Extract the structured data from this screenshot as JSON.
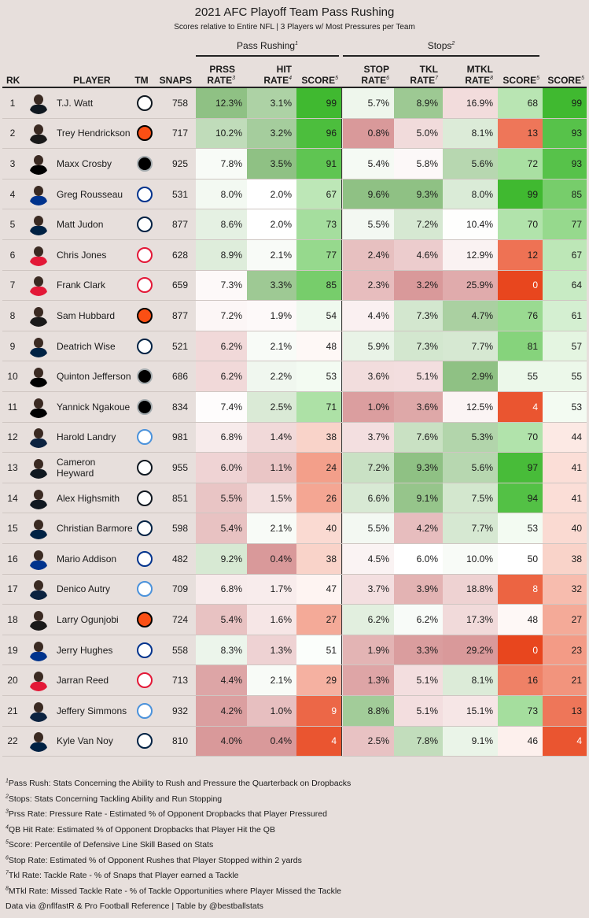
{
  "chart_data": {
    "type": "table",
    "title": "2021 AFC Playoff Team Pass Rushing",
    "subtitle": "Scores relative to Entire NFL | 3 Players w/ Most Pressures per Team",
    "groups": [
      {
        "name": "Pass Rushing",
        "sup": "1"
      },
      {
        "name": "Stops",
        "sup": "2"
      }
    ],
    "headers": {
      "rk": "RK",
      "player": "PLAYER",
      "tm": "TM",
      "snaps": "SNAPS",
      "prss_1": "PRSS",
      "prss_2": "RATE",
      "prss_sup": "3",
      "hit_1": "HIT",
      "hit_2": "RATE",
      "hit_sup": "4",
      "score": "SCORE",
      "score_sup": "5",
      "stop_1": "STOP",
      "stop_2": "RATE",
      "stop_sup": "6",
      "tkl_1": "TKL",
      "tkl_2": "RATE",
      "tkl_sup": "7",
      "mtkl_1": "MTKL",
      "mtkl_2": "RATE",
      "mtkl_sup": "8"
    },
    "rows": [
      {
        "rk": "1",
        "player": "T.J. Watt",
        "team": "PIT",
        "snaps": "758",
        "prss": "12.3%",
        "hit": "3.1%",
        "pr_score": "99",
        "stop": "5.7%",
        "tkl": "8.9%",
        "mtkl": "16.9%",
        "st_score": "68",
        "score": "99"
      },
      {
        "rk": "2",
        "player": "Trey Hendrickson",
        "team": "CIN",
        "snaps": "717",
        "prss": "10.2%",
        "hit": "3.2%",
        "pr_score": "96",
        "stop": "0.8%",
        "tkl": "5.0%",
        "mtkl": "8.1%",
        "st_score": "13",
        "score": "93"
      },
      {
        "rk": "3",
        "player": "Maxx Crosby",
        "team": "LV",
        "snaps": "925",
        "prss": "7.8%",
        "hit": "3.5%",
        "pr_score": "91",
        "stop": "5.4%",
        "tkl": "5.8%",
        "mtkl": "5.6%",
        "st_score": "72",
        "score": "93"
      },
      {
        "rk": "4",
        "player": "Greg Rousseau",
        "team": "BUF",
        "snaps": "531",
        "prss": "8.0%",
        "hit": "2.0%",
        "pr_score": "67",
        "stop": "9.6%",
        "tkl": "9.3%",
        "mtkl": "8.0%",
        "st_score": "99",
        "score": "85"
      },
      {
        "rk": "5",
        "player": "Matt Judon",
        "team": "NE",
        "snaps": "877",
        "prss": "8.6%",
        "hit": "2.0%",
        "pr_score": "73",
        "stop": "5.5%",
        "tkl": "7.2%",
        "mtkl": "10.4%",
        "st_score": "70",
        "score": "77"
      },
      {
        "rk": "6",
        "player": "Chris Jones",
        "team": "KC",
        "snaps": "628",
        "prss": "8.9%",
        "hit": "2.1%",
        "pr_score": "77",
        "stop": "2.4%",
        "tkl": "4.6%",
        "mtkl": "12.9%",
        "st_score": "12",
        "score": "67"
      },
      {
        "rk": "7",
        "player": "Frank Clark",
        "team": "KC",
        "snaps": "659",
        "prss": "7.3%",
        "hit": "3.3%",
        "pr_score": "85",
        "stop": "2.3%",
        "tkl": "3.2%",
        "mtkl": "25.9%",
        "st_score": "0",
        "score": "64"
      },
      {
        "rk": "8",
        "player": "Sam Hubbard",
        "team": "CIN",
        "snaps": "877",
        "prss": "7.2%",
        "hit": "1.9%",
        "pr_score": "54",
        "stop": "4.4%",
        "tkl": "7.3%",
        "mtkl": "4.7%",
        "st_score": "76",
        "score": "61"
      },
      {
        "rk": "9",
        "player": "Deatrich Wise",
        "team": "NE",
        "snaps": "521",
        "prss": "6.2%",
        "hit": "2.1%",
        "pr_score": "48",
        "stop": "5.9%",
        "tkl": "7.3%",
        "mtkl": "7.7%",
        "st_score": "81",
        "score": "57"
      },
      {
        "rk": "10",
        "player": "Quinton Jefferson",
        "team": "LV",
        "snaps": "686",
        "prss": "6.2%",
        "hit": "2.2%",
        "pr_score": "53",
        "stop": "3.6%",
        "tkl": "5.1%",
        "mtkl": "2.9%",
        "st_score": "55",
        "score": "55"
      },
      {
        "rk": "11",
        "player": "Yannick Ngakoue",
        "team": "LV",
        "snaps": "834",
        "prss": "7.4%",
        "hit": "2.5%",
        "pr_score": "71",
        "stop": "1.0%",
        "tkl": "3.6%",
        "mtkl": "12.5%",
        "st_score": "4",
        "score": "53"
      },
      {
        "rk": "12",
        "player": "Harold Landry",
        "team": "TEN",
        "snaps": "981",
        "prss": "6.8%",
        "hit": "1.4%",
        "pr_score": "38",
        "stop": "3.7%",
        "tkl": "7.6%",
        "mtkl": "5.3%",
        "st_score": "70",
        "score": "44"
      },
      {
        "rk": "13",
        "player": "Cameron Heyward",
        "team": "PIT",
        "snaps": "955",
        "prss": "6.0%",
        "hit": "1.1%",
        "pr_score": "24",
        "stop": "7.2%",
        "tkl": "9.3%",
        "mtkl": "5.6%",
        "st_score": "97",
        "score": "41"
      },
      {
        "rk": "14",
        "player": "Alex Highsmith",
        "team": "PIT",
        "snaps": "851",
        "prss": "5.5%",
        "hit": "1.5%",
        "pr_score": "26",
        "stop": "6.6%",
        "tkl": "9.1%",
        "mtkl": "7.5%",
        "st_score": "94",
        "score": "41"
      },
      {
        "rk": "15",
        "player": "Christian Barmore",
        "team": "NE",
        "snaps": "598",
        "prss": "5.4%",
        "hit": "2.1%",
        "pr_score": "40",
        "stop": "5.5%",
        "tkl": "4.2%",
        "mtkl": "7.7%",
        "st_score": "53",
        "score": "40"
      },
      {
        "rk": "16",
        "player": "Mario Addison",
        "team": "BUF",
        "snaps": "482",
        "prss": "9.2%",
        "hit": "0.4%",
        "pr_score": "38",
        "stop": "4.5%",
        "tkl": "6.0%",
        "mtkl": "10.0%",
        "st_score": "50",
        "score": "38"
      },
      {
        "rk": "17",
        "player": "Denico Autry",
        "team": "TEN",
        "snaps": "709",
        "prss": "6.8%",
        "hit": "1.7%",
        "pr_score": "47",
        "stop": "3.7%",
        "tkl": "3.9%",
        "mtkl": "18.8%",
        "st_score": "8",
        "score": "32"
      },
      {
        "rk": "18",
        "player": "Larry Ogunjobi",
        "team": "CIN",
        "snaps": "724",
        "prss": "5.4%",
        "hit": "1.6%",
        "pr_score": "27",
        "stop": "6.2%",
        "tkl": "6.2%",
        "mtkl": "17.3%",
        "st_score": "48",
        "score": "27"
      },
      {
        "rk": "19",
        "player": "Jerry Hughes",
        "team": "BUF",
        "snaps": "558",
        "prss": "8.3%",
        "hit": "1.3%",
        "pr_score": "51",
        "stop": "1.9%",
        "tkl": "3.3%",
        "mtkl": "29.2%",
        "st_score": "0",
        "score": "23"
      },
      {
        "rk": "20",
        "player": "Jarran Reed",
        "team": "KC",
        "snaps": "713",
        "prss": "4.4%",
        "hit": "2.1%",
        "pr_score": "29",
        "stop": "1.3%",
        "tkl": "5.1%",
        "mtkl": "8.1%",
        "st_score": "16",
        "score": "21"
      },
      {
        "rk": "21",
        "player": "Jeffery Simmons",
        "team": "TEN",
        "snaps": "932",
        "prss": "4.2%",
        "hit": "1.0%",
        "pr_score": "9",
        "stop": "8.8%",
        "tkl": "5.1%",
        "mtkl": "15.1%",
        "st_score": "73",
        "score": "13"
      },
      {
        "rk": "22",
        "player": "Kyle Van Noy",
        "team": "NE",
        "snaps": "810",
        "prss": "4.0%",
        "hit": "0.4%",
        "pr_score": "4",
        "stop": "2.5%",
        "tkl": "7.8%",
        "mtkl": "9.1%",
        "st_score": "46",
        "score": "4"
      }
    ],
    "footnotes": [
      {
        "sup": "1",
        "text": "Pass Rush: Stats Concerning the Ability to Rush and Pressure the Quarterback on Dropbacks"
      },
      {
        "sup": "2",
        "text": "Stops: Stats Concerning Tackling Ability and Run Stopping"
      },
      {
        "sup": "3",
        "text": "Prss Rate: Pressure Rate - Estimated % of Opponent Dropbacks that Player Pressured"
      },
      {
        "sup": "4",
        "text": "QB Hit Rate: Estimated % of Opponent Dropbacks that Player Hit the QB"
      },
      {
        "sup": "5",
        "text": "Score: Percentile of Defensive Line Skill Based on Stats"
      },
      {
        "sup": "6",
        "text": "Stop Rate: Estimated % of Opponent Rushes that Player Stopped within 2 yards"
      },
      {
        "sup": "7",
        "text": "Tkl Rate: Tackle Rate - % of Snaps that Player earned a Tackle"
      },
      {
        "sup": "8",
        "text": "MTkl Rate: Missed Tackle Rate - % of Tackle Opportunities where Player Missed the Tackle"
      }
    ],
    "source": "Data via @nflfastR & Pro Football Reference | Table by @bestballstats",
    "team_colors": {
      "PIT": [
        "#ffffff",
        "#101820"
      ],
      "CIN": [
        "#fb4f14",
        "#000000"
      ],
      "LV": [
        "#000000",
        "#a5acaf"
      ],
      "BUF": [
        "#ffffff",
        "#00338d"
      ],
      "NE": [
        "#ffffff",
        "#002244"
      ],
      "KC": [
        "#ffffff",
        "#e31837"
      ],
      "TEN": [
        "#ffffff",
        "#4b92db"
      ]
    },
    "scale_colors": {
      "low": "#e8461e",
      "mid": "#ffffff",
      "high": "#3cb82c",
      "rate_low": "#d9999a",
      "rate_high": "#8fc184"
    }
  }
}
